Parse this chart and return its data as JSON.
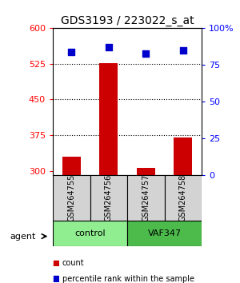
{
  "title": "GDS3193 / 223022_s_at",
  "samples": [
    "GSM264755",
    "GSM264756",
    "GSM264757",
    "GSM264758"
  ],
  "groups": [
    "control",
    "control",
    "VAF347",
    "VAF347"
  ],
  "group_labels": [
    "control",
    "VAF347"
  ],
  "group_colors": [
    "#90EE90",
    "#4CBB4C"
  ],
  "bar_values": [
    330,
    527,
    306,
    370
  ],
  "dot_values": [
    84,
    87,
    83,
    85
  ],
  "bar_color": "#CC0000",
  "dot_color": "#0000CC",
  "ylim_left": [
    290,
    600
  ],
  "ylim_right": [
    0,
    100
  ],
  "yticks_left": [
    300,
    375,
    450,
    525,
    600
  ],
  "yticks_right": [
    0,
    25,
    50,
    75,
    100
  ],
  "grid_ticks": [
    375,
    450,
    525
  ],
  "bg_color": "#ffffff",
  "plot_bg": "#ffffff",
  "legend_items": [
    "count",
    "percentile rank within the sample"
  ],
  "legend_colors": [
    "#CC0000",
    "#0000CC"
  ]
}
